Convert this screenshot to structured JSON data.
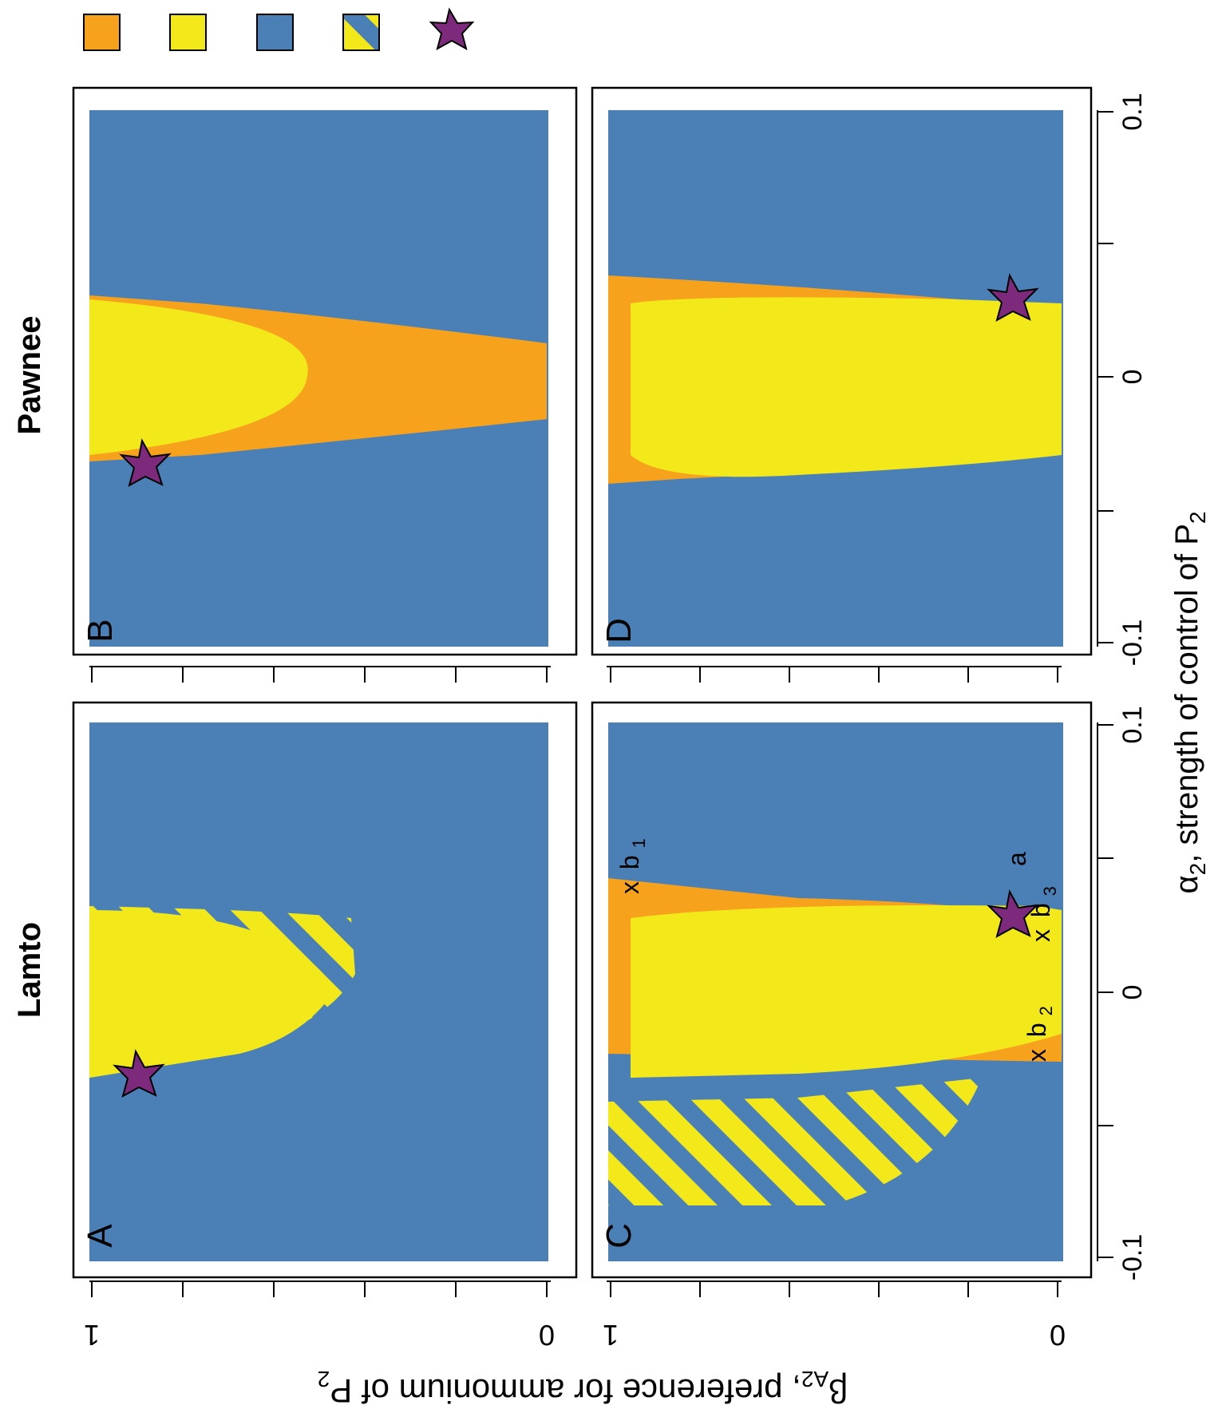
{
  "colors": {
    "blue": "#4a80b5",
    "yellow": "#f2e81a",
    "orange": "#f7a21c",
    "star": "#7d2a7d"
  },
  "legend": [
    {
      "swatch": "orange",
      "icon": "orange-square"
    },
    {
      "swatch": "yellow",
      "icon": "yellow-square"
    },
    {
      "swatch": "blue",
      "icon": "blue-square"
    },
    {
      "swatch": "hatched",
      "icon": "hatched-square"
    },
    {
      "swatch": "star",
      "icon": "star-icon"
    }
  ],
  "column_titles": {
    "left": "Lamto",
    "right": "Pawnee"
  },
  "panels": [
    {
      "id": "A",
      "label": "A"
    },
    {
      "id": "B",
      "label": "B"
    },
    {
      "id": "C",
      "label": "C"
    },
    {
      "id": "D",
      "label": "D"
    }
  ],
  "x_axis": {
    "label_main": "α",
    "label_sub": "2",
    "label_rest": ", strength of control of P",
    "label_sub2": "2",
    "ticks": [
      "-0.1",
      "0",
      "0.1"
    ]
  },
  "y_axis": {
    "label_main": "β",
    "label_sub": "A2",
    "label_rest": ", preference for ammonium of P",
    "label_sub2": "2",
    "ticks": [
      "0",
      "1"
    ]
  },
  "annotations": {
    "a": "a",
    "b1": {
      "mark": "x",
      "base": "b",
      "sub": "1"
    },
    "b2": {
      "mark": "x",
      "base": "b",
      "sub": "2"
    },
    "b3": {
      "mark": "x",
      "base": "b",
      "sub": "3"
    }
  },
  "chart_data": {
    "type": "heatmap",
    "layout": "2x2 panels, figure rotated 90°",
    "x": {
      "range": [
        -0.12,
        0.12
      ],
      "ticks": [
        -0.1,
        -0.05,
        0,
        0.05,
        0.1
      ],
      "tick_labels": [
        "-0.1",
        "0",
        "0.1"
      ]
    },
    "y": {
      "range": [
        0,
        1
      ],
      "ticks": [
        0,
        0.2,
        0.4,
        0.6,
        0.8,
        1
      ],
      "tick_labels": [
        "0",
        "1"
      ]
    },
    "panels": [
      {
        "panel": "A",
        "column": "Lamto",
        "regions": [
          "blue",
          "yellow",
          "hatched"
        ],
        "star": {
          "x": -0.045,
          "y": 0.9
        }
      },
      {
        "panel": "B",
        "column": "Pawnee",
        "regions": [
          "blue",
          "yellow",
          "orange"
        ],
        "star": {
          "x": -0.045,
          "y": 0.9
        }
      },
      {
        "panel": "C",
        "column": "Lamto",
        "regions": [
          "blue",
          "yellow",
          "orange",
          "hatched"
        ],
        "star": {
          "x": 0.03,
          "y": 0.1
        },
        "points": [
          {
            "name": "a",
            "x": 0.03,
            "y": 0.1
          },
          {
            "name": "b1",
            "x": 0.04,
            "y": 0.95
          },
          {
            "name": "b2",
            "x": -0.02,
            "y": 0.0
          },
          {
            "name": "b3",
            "x": 0.03,
            "y": 0.0
          }
        ]
      },
      {
        "panel": "D",
        "column": "Pawnee",
        "regions": [
          "blue",
          "yellow",
          "orange"
        ],
        "star": {
          "x": 0.03,
          "y": 0.1
        }
      }
    ]
  }
}
